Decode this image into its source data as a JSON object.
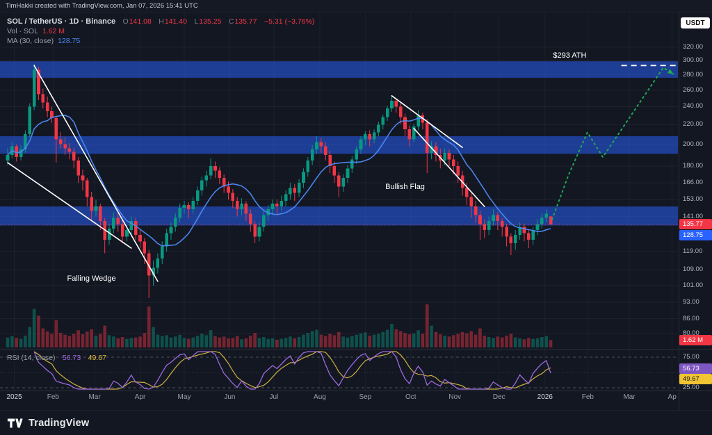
{
  "header": {
    "attribution": "TimHakki created with TradingView.com, Jan 07, 2026 15:41 UTC",
    "currency_button": "USDT"
  },
  "legend": {
    "title": "SOL / TetherUS · 1D · Binance",
    "ohlc": {
      "o_label": "O",
      "o": "141.08",
      "h_label": "H",
      "h": "141.40",
      "l_label": "L",
      "l": "135.25",
      "c_label": "C",
      "c": "135.77",
      "change": "−5.31 (−3.76%)"
    },
    "volume": {
      "label": "Vol · SOL",
      "value": "1.62 M"
    },
    "ma": {
      "label": "MA (30, close)",
      "value": "128.75"
    }
  },
  "rsi_legend": {
    "label": "RSI (14, close)",
    "value": "56.73",
    "ma_value": "49.67"
  },
  "badges": {
    "last_price": "135.77",
    "ma": "128.75",
    "volume": "1.62 M",
    "rsi": "56.73",
    "rsi_ma": "49.67"
  },
  "annotations": {
    "ath": "$293 ATH",
    "bullish_flag": "Bullish Flag",
    "falling_wedge": "Falling Wedge"
  },
  "footer": {
    "logo_text": "TradingView"
  },
  "colors": {
    "up": "#089981",
    "down": "#f23645",
    "ma_line": "#4c8bf5",
    "zone": "rgba(41,98,255,0.52)",
    "projection": "#1fab54",
    "rsi": "#9c6ade",
    "rsi_ma": "#e2c044",
    "trendline": "#ffffff"
  },
  "chart_data": {
    "type": "candlestick",
    "symbol": "SOL/TetherUS",
    "exchange": "Binance",
    "interval": "1D",
    "scale": "log",
    "days_per_candle": 3,
    "range_start": "Jan 2025",
    "range_end": "Apr 2026",
    "ylim": [
      75,
      335
    ],
    "y_ticks": [
      320,
      300,
      280,
      260,
      240,
      220,
      200,
      180,
      166,
      153,
      141,
      119,
      109,
      101,
      93,
      86,
      80
    ],
    "rsi_ticks": [
      75,
      25
    ],
    "x_ticks": [
      {
        "label": "2025",
        "t": 1.5
      },
      {
        "label": "Feb",
        "t": 10.3
      },
      {
        "label": "Mar",
        "t": 19.7
      },
      {
        "label": "Apr",
        "t": 30
      },
      {
        "label": "May",
        "t": 40
      },
      {
        "label": "Jun",
        "t": 50.3
      },
      {
        "label": "Jul",
        "t": 60.3
      },
      {
        "label": "Aug",
        "t": 70.7
      },
      {
        "label": "Sep",
        "t": 81
      },
      {
        "label": "Oct",
        "t": 91.3
      },
      {
        "label": "Nov",
        "t": 101.3
      },
      {
        "label": "Dec",
        "t": 111.3
      },
      {
        "label": "2026",
        "t": 121.7
      },
      {
        "label": "Feb",
        "t": 131.4
      },
      {
        "label": "Mar",
        "t": 140.8
      },
      {
        "label": "Ap",
        "t": 150.5
      }
    ],
    "candles": [
      [
        185,
        196,
        181,
        190
      ],
      [
        190,
        202,
        187,
        198
      ],
      [
        198,
        200,
        184,
        188
      ],
      [
        188,
        199,
        185,
        195
      ],
      [
        195,
        214,
        192,
        210
      ],
      [
        210,
        244,
        207,
        240
      ],
      [
        240,
        295,
        236,
        287
      ],
      [
        287,
        291,
        248,
        255
      ],
      [
        255,
        262,
        238,
        245
      ],
      [
        245,
        252,
        228,
        235
      ],
      [
        235,
        240,
        222,
        227
      ],
      [
        227,
        230,
        183,
        205
      ],
      [
        205,
        212,
        196,
        200
      ],
      [
        200,
        207,
        190,
        196
      ],
      [
        196,
        201,
        186,
        193
      ],
      [
        193,
        197,
        178,
        185
      ],
      [
        185,
        188,
        166,
        172
      ],
      [
        172,
        177,
        160,
        168
      ],
      [
        168,
        170,
        148,
        155
      ],
      [
        155,
        159,
        138,
        145
      ],
      [
        145,
        153,
        141,
        148
      ],
      [
        148,
        150,
        132,
        138
      ],
      [
        138,
        140,
        118,
        126
      ],
      [
        126,
        136,
        123,
        133
      ],
      [
        133,
        144,
        130,
        140
      ],
      [
        140,
        143,
        131,
        136
      ],
      [
        136,
        139,
        124,
        128
      ],
      [
        128,
        135,
        125,
        132
      ],
      [
        132,
        141,
        129,
        138
      ],
      [
        138,
        140,
        126,
        129
      ],
      [
        129,
        132,
        121,
        125
      ],
      [
        125,
        127,
        112,
        118
      ],
      [
        118,
        120,
        95,
        106
      ],
      [
        106,
        114,
        101,
        110
      ],
      [
        110,
        118,
        107,
        115
      ],
      [
        115,
        125,
        112,
        122
      ],
      [
        122,
        133,
        119,
        130
      ],
      [
        130,
        137,
        126,
        134
      ],
      [
        134,
        143,
        131,
        140
      ],
      [
        140,
        150,
        137,
        147
      ],
      [
        147,
        152,
        143,
        149
      ],
      [
        149,
        151,
        140,
        146
      ],
      [
        146,
        155,
        143,
        152
      ],
      [
        152,
        163,
        149,
        160
      ],
      [
        160,
        171,
        156,
        168
      ],
      [
        168,
        176,
        163,
        172
      ],
      [
        172,
        187,
        169,
        180
      ],
      [
        180,
        184,
        170,
        176
      ],
      [
        176,
        179,
        165,
        170
      ],
      [
        170,
        173,
        158,
        163
      ],
      [
        163,
        167,
        153,
        158
      ],
      [
        158,
        161,
        147,
        152
      ],
      [
        152,
        155,
        141,
        146
      ],
      [
        146,
        154,
        142,
        150
      ],
      [
        150,
        152,
        138,
        143
      ],
      [
        143,
        146,
        131,
        136
      ],
      [
        136,
        138,
        124,
        128
      ],
      [
        128,
        137,
        125,
        134
      ],
      [
        134,
        145,
        131,
        142
      ],
      [
        142,
        149,
        138,
        146
      ],
      [
        146,
        153,
        142,
        150
      ],
      [
        150,
        153,
        143,
        148
      ],
      [
        148,
        156,
        145,
        152
      ],
      [
        152,
        160,
        148,
        157
      ],
      [
        157,
        166,
        153,
        162
      ],
      [
        162,
        165,
        152,
        158
      ],
      [
        158,
        169,
        155,
        166
      ],
      [
        166,
        178,
        162,
        175
      ],
      [
        175,
        188,
        171,
        185
      ],
      [
        185,
        199,
        181,
        195
      ],
      [
        195,
        208,
        191,
        202
      ],
      [
        202,
        206,
        192,
        198
      ],
      [
        198,
        202,
        185,
        190
      ],
      [
        190,
        194,
        174,
        180
      ],
      [
        180,
        184,
        166,
        172
      ],
      [
        172,
        175,
        155,
        163
      ],
      [
        163,
        173,
        159,
        170
      ],
      [
        170,
        181,
        166,
        178
      ],
      [
        178,
        189,
        174,
        186
      ],
      [
        186,
        198,
        182,
        195
      ],
      [
        195,
        208,
        191,
        205
      ],
      [
        205,
        213,
        199,
        210
      ],
      [
        210,
        214,
        198,
        205
      ],
      [
        205,
        215,
        201,
        212
      ],
      [
        212,
        223,
        208,
        220
      ],
      [
        220,
        231,
        215,
        228
      ],
      [
        228,
        241,
        224,
        238
      ],
      [
        238,
        253,
        234,
        247
      ],
      [
        247,
        250,
        233,
        240
      ],
      [
        240,
        244,
        221,
        228
      ],
      [
        228,
        232,
        208,
        215
      ],
      [
        215,
        219,
        198,
        205
      ],
      [
        205,
        221,
        202,
        218
      ],
      [
        218,
        236,
        214,
        230
      ],
      [
        230,
        233,
        215,
        222
      ],
      [
        222,
        226,
        174,
        192
      ],
      [
        192,
        203,
        186,
        198
      ],
      [
        198,
        202,
        184,
        190
      ],
      [
        190,
        196,
        178,
        185
      ],
      [
        185,
        196,
        181,
        192
      ],
      [
        192,
        195,
        180,
        186
      ],
      [
        186,
        190,
        173,
        180
      ],
      [
        180,
        184,
        166,
        172
      ],
      [
        172,
        176,
        156,
        162
      ],
      [
        162,
        166,
        149,
        155
      ],
      [
        155,
        158,
        140,
        148
      ],
      [
        148,
        152,
        137,
        142
      ],
      [
        142,
        145,
        126,
        136
      ],
      [
        136,
        139,
        127,
        132
      ],
      [
        132,
        141,
        129,
        138
      ],
      [
        138,
        146,
        135,
        142
      ],
      [
        142,
        144,
        132,
        138
      ],
      [
        138,
        140,
        128,
        134
      ],
      [
        134,
        136,
        122,
        128
      ],
      [
        128,
        130,
        117,
        124
      ],
      [
        124,
        132,
        120,
        129
      ],
      [
        129,
        137,
        126,
        134
      ],
      [
        134,
        136,
        125,
        130
      ],
      [
        130,
        132,
        121,
        126
      ],
      [
        126,
        134,
        123,
        132
      ],
      [
        132,
        139,
        129,
        136
      ],
      [
        136,
        143,
        133,
        140
      ],
      [
        140,
        146,
        137,
        143
      ],
      [
        141.08,
        141.4,
        135.25,
        135.77
      ]
    ],
    "volume_m": [
      2.2,
      2.5,
      2.1,
      1.9,
      2.6,
      4.5,
      8.5,
      7.0,
      4.2,
      3.5,
      3.0,
      6.0,
      3.2,
      2.8,
      2.5,
      3.0,
      3.8,
      2.9,
      3.5,
      4.0,
      2.6,
      3.0,
      4.8,
      2.7,
      2.4,
      2.0,
      2.3,
      1.9,
      2.1,
      2.2,
      2.4,
      3.2,
      9.0,
      4.5,
      2.8,
      2.5,
      2.7,
      2.2,
      2.4,
      2.8,
      2.1,
      1.9,
      2.2,
      2.6,
      3.0,
      2.7,
      3.8,
      2.5,
      2.2,
      2.4,
      2.0,
      2.1,
      2.5,
      1.8,
      2.0,
      2.6,
      3.2,
      2.1,
      2.3,
      1.9,
      2.0,
      1.7,
      1.9,
      2.1,
      2.4,
      2.0,
      2.3,
      2.8,
      3.2,
      3.6,
      3.9,
      2.8,
      2.5,
      3.0,
      2.7,
      3.4,
      2.4,
      2.2,
      2.5,
      2.8,
      3.1,
      3.3,
      2.6,
      2.8,
      3.0,
      3.4,
      3.9,
      5.2,
      4.0,
      3.6,
      3.2,
      2.9,
      3.1,
      3.8,
      3.0,
      9.5,
      4.8,
      3.4,
      2.9,
      2.6,
      2.4,
      2.7,
      3.0,
      3.4,
      3.1,
      3.6,
      2.8,
      4.2,
      2.6,
      2.3,
      2.1,
      2.4,
      2.2,
      2.6,
      3.0,
      2.2,
      2.0,
      1.8,
      2.1,
      1.9,
      2.0,
      2.3,
      2.5,
      1.62
    ],
    "ma_period": 30,
    "rsi_period": 14,
    "zones": [
      {
        "from": 276,
        "to": 299
      },
      {
        "from": 191,
        "to": 208
      },
      {
        "from": 135,
        "to": 148
      }
    ],
    "trendlines": [
      {
        "name": "falling-wedge-upper-line",
        "points": [
          [
            6,
            293
          ],
          [
            34,
            103
          ]
        ]
      },
      {
        "name": "falling-wedge-lower-line",
        "points": [
          [
            0,
            183
          ],
          [
            28,
            121
          ]
        ]
      },
      {
        "name": "bullish-flag-upper-line",
        "points": [
          [
            87,
            253
          ],
          [
            103,
            197
          ]
        ]
      },
      {
        "name": "bullish-flag-lower-line",
        "points": [
          [
            92,
            216
          ],
          [
            108,
            148
          ]
        ]
      }
    ],
    "projection": [
      [
        123.3,
        139
      ],
      [
        127,
        172
      ],
      [
        131.3,
        212
      ],
      [
        134.8,
        188
      ],
      [
        148.5,
        290
      ],
      [
        150.8,
        281
      ]
    ],
    "ath_line": {
      "price": 293,
      "t_from": 139,
      "t_to": 152.8
    },
    "annotations": [
      {
        "id": "ann-ath",
        "t": 127.3,
        "price": 306
      },
      {
        "id": "ann-flag",
        "t": 90,
        "price": 162
      },
      {
        "id": "ann-wedge",
        "t": 19,
        "price": 104
      }
    ],
    "last_price": 135.77,
    "ma_value": 128.75,
    "volume_value_m": 1.62,
    "rsi_value": 56.73,
    "rsi_ma_value": 49.67,
    "rsi_levels": {
      "upper": 75,
      "middle": 50,
      "lower": 25
    }
  }
}
